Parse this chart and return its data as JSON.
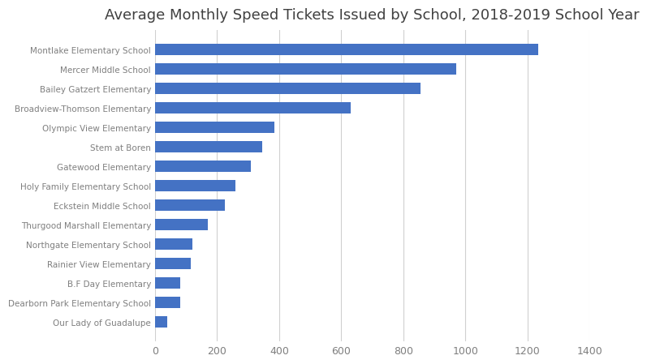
{
  "title": "Average Monthly Speed Tickets Issued by School, 2018-2019 School Year",
  "schools": [
    "Montlake Elementary School",
    "Mercer Middle School",
    "Bailey Gatzert Elementary",
    "Broadview-Thomson Elementary",
    "Olympic View Elementary",
    "Stem at Boren",
    "Gatewood Elementary",
    "Holy Family Elementary School",
    "Eckstein Middle School",
    "Thurgood Marshall Elementary",
    "Northgate Elementary School",
    "Rainier View Elementary",
    "B.F Day Elementary",
    "Dearborn Park Elementary School",
    "Our Lady of Guadalupe"
  ],
  "values": [
    1235,
    970,
    855,
    630,
    385,
    345,
    310,
    260,
    225,
    170,
    120,
    115,
    80,
    80,
    40
  ],
  "bar_color": "#4472C4",
  "xlim": [
    0,
    1400
  ],
  "xticks": [
    0,
    200,
    400,
    600,
    800,
    1000,
    1200,
    1400
  ],
  "title_fontsize": 13,
  "label_fontsize": 7.5,
  "tick_fontsize": 9,
  "background_color": "#ffffff",
  "grid_color": "#d0d0d0",
  "label_color": "#7f7f7f"
}
